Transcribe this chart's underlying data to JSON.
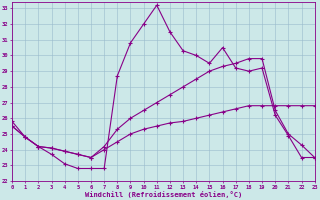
{
  "xlabel": "Windchill (Refroidissement éolien,°C)",
  "xlim": [
    0,
    23
  ],
  "ylim": [
    22,
    33.4
  ],
  "yticks": [
    22,
    23,
    24,
    25,
    26,
    27,
    28,
    29,
    30,
    31,
    32,
    33
  ],
  "xticks": [
    0,
    1,
    2,
    3,
    4,
    5,
    6,
    7,
    8,
    9,
    10,
    11,
    12,
    13,
    14,
    15,
    16,
    17,
    18,
    19,
    20,
    21,
    22,
    23
  ],
  "bg_color": "#cce8e8",
  "line_color": "#880088",
  "grid_color": "#99bbcc",
  "line1_x": [
    0,
    1,
    2,
    3,
    4,
    5,
    6,
    7,
    8,
    9,
    10,
    11,
    12,
    13,
    14,
    15,
    16,
    17,
    18,
    19,
    20,
    21,
    22,
    23
  ],
  "line1_y": [
    25.8,
    24.8,
    24.2,
    23.7,
    23.1,
    22.8,
    22.8,
    22.8,
    28.7,
    30.8,
    32.0,
    33.2,
    31.5,
    30.3,
    30.0,
    29.5,
    30.5,
    29.2,
    29.0,
    29.2,
    26.2,
    24.9,
    23.5,
    23.5
  ],
  "line2_x": [
    0,
    1,
    2,
    3,
    4,
    5,
    6,
    7,
    8,
    9,
    10,
    11,
    12,
    13,
    14,
    15,
    16,
    17,
    18,
    19,
    20,
    21,
    22,
    23
  ],
  "line2_y": [
    25.5,
    24.8,
    24.2,
    24.1,
    23.9,
    23.7,
    23.5,
    24.2,
    25.3,
    26.0,
    26.5,
    27.0,
    27.5,
    28.0,
    28.5,
    29.0,
    29.3,
    29.5,
    29.8,
    29.8,
    26.5,
    25.0,
    24.3,
    23.5
  ],
  "line3_x": [
    0,
    1,
    2,
    3,
    4,
    5,
    6,
    7,
    8,
    9,
    10,
    11,
    12,
    13,
    14,
    15,
    16,
    17,
    18,
    19,
    20,
    21,
    22,
    23
  ],
  "line3_y": [
    25.5,
    24.8,
    24.2,
    24.1,
    23.9,
    23.7,
    23.5,
    24.0,
    24.5,
    25.0,
    25.3,
    25.5,
    25.7,
    25.8,
    26.0,
    26.2,
    26.4,
    26.6,
    26.8,
    26.8,
    26.8,
    26.8,
    26.8,
    26.8
  ]
}
